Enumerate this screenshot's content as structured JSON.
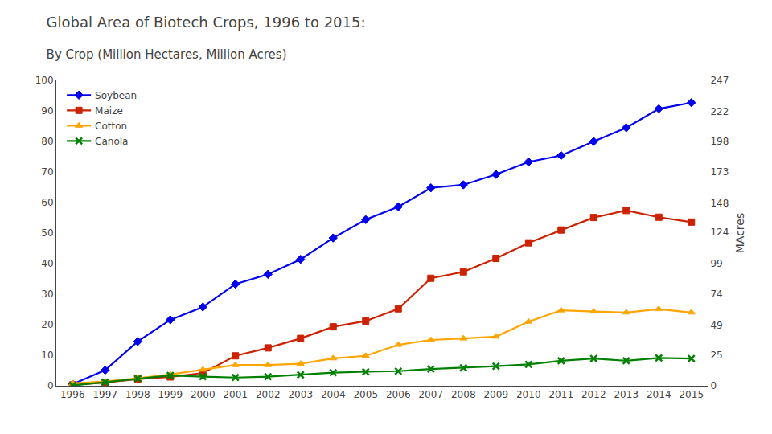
{
  "chart_data": {
    "type": "line",
    "title": "Global Area of Biotech Crops, 1996 to 2015:",
    "subtitle": "  By Crop (Million Hectares, Million Acres)",
    "y2label": "MAcres",
    "x": [
      1996,
      1997,
      1998,
      1999,
      2000,
      2001,
      2002,
      2003,
      2004,
      2005,
      2006,
      2007,
      2008,
      2009,
      2010,
      2011,
      2012,
      2013,
      2014,
      2015
    ],
    "series": [
      {
        "name": "Soybean",
        "color": "#0000EE",
        "marker": "diamond",
        "values": [
          0.5,
          5.1,
          14.5,
          21.6,
          25.8,
          33.3,
          36.5,
          41.4,
          48.4,
          54.4,
          58.6,
          64.8,
          65.8,
          69.2,
          73.3,
          75.4,
          80.0,
          84.5,
          90.7,
          92.7
        ]
      },
      {
        "name": "Maize",
        "color": "#CC2200",
        "marker": "square",
        "values": [
          0.3,
          1.1,
          2.2,
          2.9,
          4.2,
          9.8,
          12.4,
          15.5,
          19.3,
          21.2,
          25.2,
          35.2,
          37.3,
          41.7,
          46.8,
          51.0,
          55.1,
          57.4,
          55.2,
          53.6
        ]
      },
      {
        "name": "Cotton",
        "color": "#FFA500",
        "marker": "triangle-up",
        "values": [
          0.8,
          1.4,
          2.5,
          3.7,
          5.3,
          6.8,
          6.8,
          7.2,
          9.0,
          9.8,
          13.4,
          15.0,
          15.5,
          16.1,
          21.0,
          24.7,
          24.3,
          24.0,
          25.1,
          24.0
        ]
      },
      {
        "name": "Canola",
        "color": "#008000",
        "marker": "x",
        "values": [
          0.1,
          1.2,
          2.4,
          3.4,
          3.0,
          2.7,
          3.0,
          3.6,
          4.3,
          4.6,
          4.8,
          5.5,
          5.9,
          6.4,
          7.0,
          8.2,
          8.9,
          8.2,
          9.1,
          8.9
        ]
      }
    ],
    "xlim": [
      1995.5,
      2015.5
    ],
    "xticks": [
      1996,
      1997,
      1998,
      1999,
      2000,
      2001,
      2002,
      2003,
      2004,
      2005,
      2006,
      2007,
      2008,
      2009,
      2010,
      2011,
      2012,
      2013,
      2014,
      2015
    ],
    "ylim": [
      0,
      100
    ],
    "yticks": [
      0,
      10,
      20,
      30,
      40,
      50,
      60,
      70,
      80,
      90,
      100
    ],
    "y2lim": [
      0,
      247
    ],
    "y2ticks": [
      0,
      25,
      49,
      74,
      99,
      124,
      148,
      173,
      198,
      222,
      247
    ],
    "grid": false,
    "legend": "upper left"
  }
}
